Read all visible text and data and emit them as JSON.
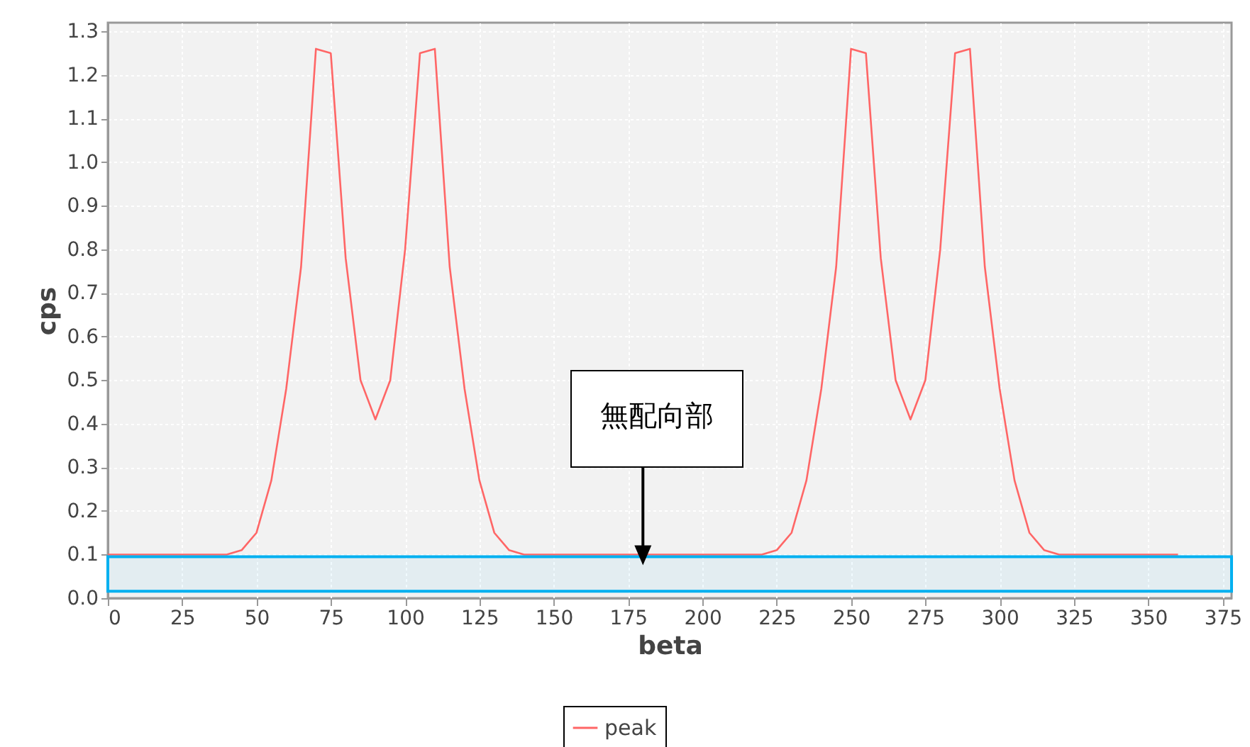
{
  "chart_data": {
    "type": "line",
    "xlabel": "beta",
    "ylabel": "cps",
    "x": [
      0,
      5,
      10,
      15,
      20,
      25,
      30,
      35,
      40,
      45,
      50,
      55,
      60,
      65,
      70,
      75,
      80,
      85,
      90,
      95,
      100,
      105,
      110,
      115,
      120,
      125,
      130,
      135,
      140,
      145,
      150,
      155,
      160,
      165,
      170,
      175,
      180,
      185,
      190,
      195,
      200,
      205,
      210,
      215,
      220,
      225,
      230,
      235,
      240,
      245,
      250,
      255,
      260,
      265,
      270,
      275,
      280,
      285,
      290,
      295,
      300,
      305,
      310,
      315,
      320,
      325,
      330,
      335,
      340,
      345,
      350,
      355,
      360
    ],
    "series": [
      {
        "name": "peak",
        "color": "#ff6666",
        "values": [
          0.1,
          0.1,
          0.1,
          0.1,
          0.1,
          0.1,
          0.1,
          0.1,
          0.1,
          0.11,
          0.15,
          0.27,
          0.48,
          0.76,
          1.26,
          1.25,
          0.78,
          0.5,
          0.41,
          0.5,
          0.8,
          1.25,
          1.26,
          0.76,
          0.48,
          0.27,
          0.15,
          0.11,
          0.1,
          0.1,
          0.1,
          0.1,
          0.1,
          0.1,
          0.1,
          0.1,
          0.1,
          0.1,
          0.1,
          0.1,
          0.1,
          0.1,
          0.1,
          0.1,
          0.1,
          0.11,
          0.15,
          0.27,
          0.48,
          0.76,
          1.26,
          1.25,
          0.78,
          0.5,
          0.41,
          0.5,
          0.8,
          1.25,
          1.26,
          0.76,
          0.48,
          0.27,
          0.15,
          0.11,
          0.1,
          0.1,
          0.1,
          0.1,
          0.1,
          0.1,
          0.1,
          0.1,
          0.1
        ]
      }
    ],
    "xlim": [
      0,
      378
    ],
    "xticks": [
      0,
      25,
      50,
      75,
      100,
      125,
      150,
      175,
      200,
      225,
      250,
      275,
      300,
      325,
      350,
      375
    ],
    "ylim": [
      0,
      1.32
    ],
    "yticks": [
      {
        "value": 0,
        "label": "0.0"
      },
      0.1,
      0.2,
      0.3,
      0.4,
      0.5,
      0.6,
      0.7,
      0.8,
      0.9,
      {
        "value": 1,
        "label": "1.0"
      },
      1.1,
      1.2,
      1.3
    ],
    "grid": true,
    "legend": "bottom",
    "marker": "none",
    "line_style": "solid",
    "bands": [
      {
        "axis": "y",
        "from": 0.016,
        "to": 0.095,
        "color": "#00b0f0"
      }
    ],
    "annotations": [
      {
        "text": "無配向部",
        "x": 180,
        "y": 0.095
      }
    ]
  }
}
